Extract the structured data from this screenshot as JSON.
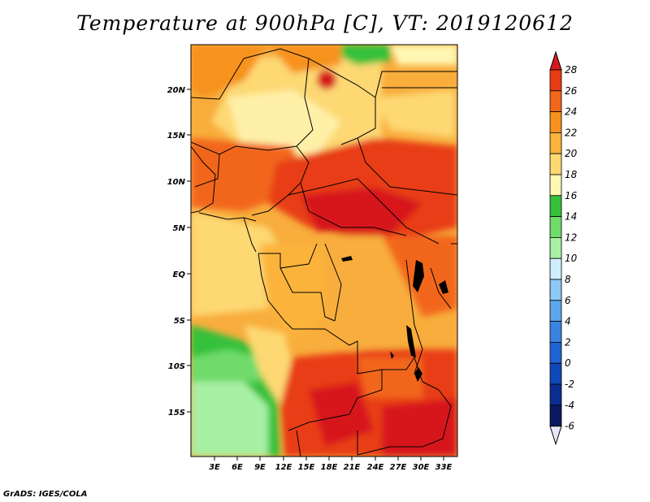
{
  "title": "Temperature at 900hPa [C], VT: 2019120612",
  "credit": "GrADS: IGES/COLA",
  "map": {
    "lat_labels": [
      "20N",
      "15N",
      "10N",
      "5N",
      "EQ",
      "5S",
      "10S",
      "15S"
    ],
    "lon_labels": [
      "3E",
      "6E",
      "9E",
      "12E",
      "15E",
      "18E",
      "21E",
      "24E",
      "27E",
      "30E",
      "33E"
    ]
  },
  "colorbar": {
    "levels": [
      "28",
      "26",
      "24",
      "22",
      "20",
      "18",
      "16",
      "14",
      "12",
      "10",
      "8",
      "6",
      "4",
      "2",
      "0",
      "-2",
      "-4",
      "-6"
    ],
    "colors": [
      "#d7191c",
      "#e83c14",
      "#f2661a",
      "#f7921c",
      "#fbb33b",
      "#fdd873",
      "#fff7b2",
      "#35c13a",
      "#6fdb6a",
      "#a8f0a4",
      "#cfeefd",
      "#8ec8f4",
      "#5ea6ec",
      "#3a84e0",
      "#1f64d4",
      "#0f48b8",
      "#0a2e90",
      "#0b1860",
      "#e8e6fa"
    ]
  }
}
